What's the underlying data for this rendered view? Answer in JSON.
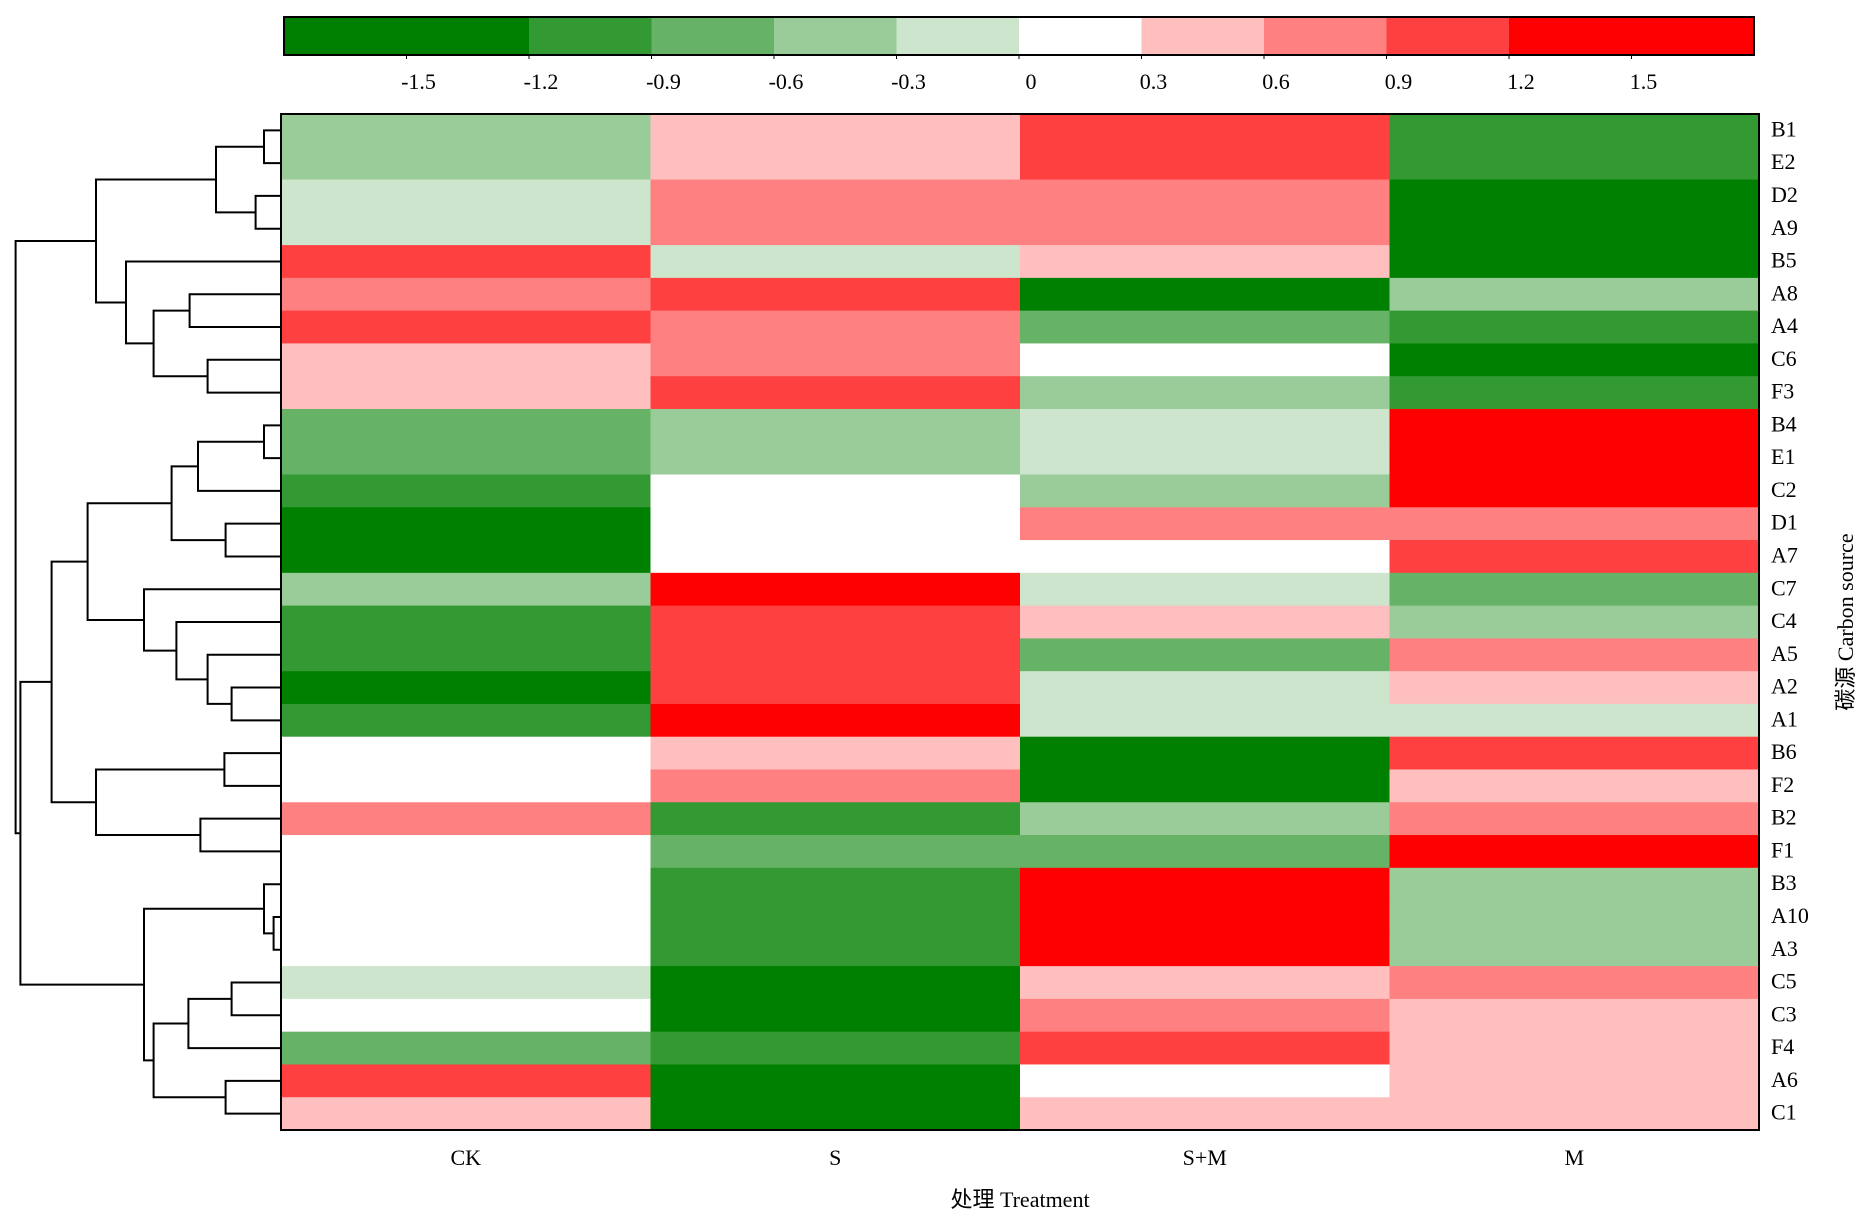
{
  "chart_data": {
    "type": "heatmap",
    "x_label": "处理 Treatment",
    "y_label": "碳源 Carbon source",
    "x_categories": [
      "CK",
      "S",
      "S+M",
      "M"
    ],
    "y_categories": [
      "B1",
      "E2",
      "D2",
      "A9",
      "B5",
      "A8",
      "A4",
      "C6",
      "F3",
      "B4",
      "E1",
      "C2",
      "D1",
      "A7",
      "C7",
      "C4",
      "A5",
      "A2",
      "A1",
      "B6",
      "F2",
      "B2",
      "F1",
      "B3",
      "A10",
      "A3",
      "C5",
      "C3",
      "F4",
      "A6",
      "C1"
    ],
    "values": [
      [
        -0.45,
        0.45,
        1.05,
        -1.05
      ],
      [
        -0.45,
        0.45,
        1.05,
        -1.05
      ],
      [
        -0.15,
        0.75,
        0.75,
        -1.35
      ],
      [
        -0.15,
        0.75,
        0.75,
        -1.35
      ],
      [
        1.05,
        -0.15,
        0.45,
        -1.35
      ],
      [
        0.75,
        1.05,
        -1.35,
        -0.45
      ],
      [
        1.05,
        0.75,
        -0.75,
        -1.05
      ],
      [
        0.45,
        0.75,
        0.15,
        -1.35
      ],
      [
        0.45,
        1.05,
        -0.45,
        -1.05
      ],
      [
        -0.75,
        -0.45,
        -0.15,
        1.35
      ],
      [
        -0.75,
        -0.45,
        -0.15,
        1.35
      ],
      [
        -1.05,
        0.15,
        -0.45,
        1.35
      ],
      [
        -1.35,
        0.15,
        0.75,
        0.75
      ],
      [
        -1.35,
        0.15,
        0.15,
        1.05
      ],
      [
        -0.45,
        1.35,
        -0.15,
        -0.75
      ],
      [
        -1.05,
        1.05,
        0.45,
        -0.45
      ],
      [
        -1.05,
        1.05,
        -0.75,
        0.75
      ],
      [
        -1.35,
        1.05,
        -0.15,
        0.45
      ],
      [
        -1.05,
        1.35,
        -0.15,
        -0.15
      ],
      [
        0.15,
        0.45,
        -1.35,
        1.05
      ],
      [
        0.15,
        0.75,
        -1.35,
        0.45
      ],
      [
        0.75,
        -1.05,
        -0.45,
        0.75
      ],
      [
        0.15,
        -0.75,
        -0.75,
        1.35
      ],
      [
        0.15,
        -1.05,
        1.35,
        -0.45
      ],
      [
        0.15,
        -1.05,
        1.35,
        -0.45
      ],
      [
        0.15,
        -1.05,
        1.35,
        -0.45
      ],
      [
        -0.15,
        -1.35,
        0.45,
        0.75
      ],
      [
        0.15,
        -1.35,
        0.75,
        0.45
      ],
      [
        -0.75,
        -1.05,
        1.05,
        0.45
      ],
      [
        1.05,
        -1.35,
        0.15,
        0.45
      ],
      [
        0.45,
        -1.35,
        0.45,
        0.45
      ]
    ],
    "colorbar": {
      "clim": [
        -1.8,
        1.8
      ],
      "ticks": [
        -1.5,
        -1.2,
        -0.9,
        -0.6,
        -0.3,
        0,
        0.3,
        0.6,
        0.9,
        1.2,
        1.5
      ],
      "colors": [
        "#008000",
        "#008000",
        "#339933",
        "#66b266",
        "#99cc99",
        "#cce5cc",
        "#ffffff",
        "#ffbfbf",
        "#ff8080",
        "#ff4040",
        "#ff0000",
        "#ff0000"
      ]
    }
  }
}
